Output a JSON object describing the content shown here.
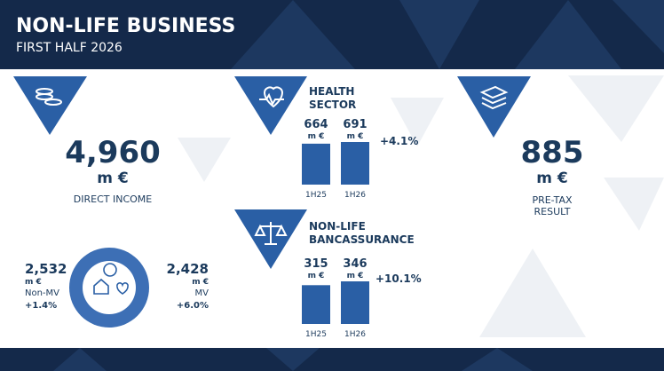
{
  "header": {
    "title": "NON-LIFE BUSINESS",
    "subtitle": "FIRST HALF 2026"
  },
  "direct_income": {
    "value": "4,960",
    "unit": "m €",
    "label": "DIRECT INCOME"
  },
  "segments": [
    {
      "value": "2,532",
      "unit": "m €",
      "name": "Non-MV",
      "growth": "+1.4%"
    },
    {
      "value": "2,428",
      "unit": "m €",
      "name": "MV",
      "growth": "+6.0%"
    }
  ],
  "health": {
    "title": [
      "HEALTH",
      "SECTOR"
    ],
    "categories": [
      "1H25",
      "1H26"
    ],
    "values": [
      664,
      691
    ],
    "unit": "m €",
    "growth": "+4.1%"
  },
  "bancassurance": {
    "title": [
      "NON-LIFE",
      "BANCASSURANCE"
    ],
    "categories": [
      "1H25",
      "1H26"
    ],
    "values": [
      315,
      346
    ],
    "unit": "m €",
    "growth": "+10.1%"
  },
  "pretax": {
    "value": "885",
    "unit": "m €",
    "label": [
      "PRE-TAX",
      "RESULT"
    ]
  }
}
